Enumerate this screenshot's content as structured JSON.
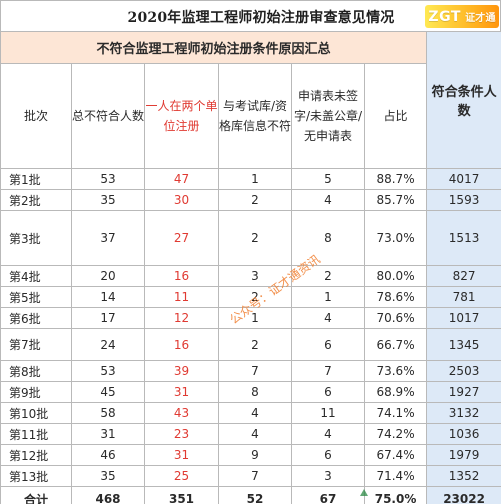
{
  "page": {
    "title": "2020年监理工程师初始注册审查意见情况"
  },
  "logo": {
    "text": "ZGT",
    "sub": "证才通",
    "accent_color": "#ffb51a"
  },
  "watermark": {
    "text": "公众号：证才通资讯",
    "color": "#f07c2c"
  },
  "table": {
    "group_header": "不符合监理工程师初始注册条件原因汇总",
    "qualified_header": "符合条件人数",
    "columns": {
      "batch": "批次",
      "total_noncompliant": "总不符合人数",
      "dual_units": "一人在两个单位注册",
      "exam_mismatch": "与考试库/资格库信息不符",
      "unsigned_forms": "申请表未签字/未盖公章/无申请表",
      "ratio": "占比"
    },
    "rows": [
      {
        "batch": "第1批",
        "total": "53",
        "dual": "47",
        "exam": "1",
        "forms": "5",
        "ratio": "88.7%",
        "qualified": "4017"
      },
      {
        "batch": "第2批",
        "total": "35",
        "dual": "30",
        "exam": "2",
        "forms": "4",
        "ratio": "85.7%",
        "qualified": "1593"
      },
      {
        "batch": "第3批",
        "total": "37",
        "dual": "27",
        "exam": "2",
        "forms": "8",
        "ratio": "73.0%",
        "qualified": "1513"
      },
      {
        "batch": "第4批",
        "total": "20",
        "dual": "16",
        "exam": "3",
        "forms": "2",
        "ratio": "80.0%",
        "qualified": "827"
      },
      {
        "batch": "第5批",
        "total": "14",
        "dual": "11",
        "exam": "2",
        "forms": "1",
        "ratio": "78.6%",
        "qualified": "781"
      },
      {
        "batch": "第6批",
        "total": "17",
        "dual": "12",
        "exam": "1",
        "forms": "4",
        "ratio": "70.6%",
        "qualified": "1017"
      },
      {
        "batch": "第7批",
        "total": "24",
        "dual": "16",
        "exam": "2",
        "forms": "6",
        "ratio": "66.7%",
        "qualified": "1345"
      },
      {
        "batch": "第8批",
        "total": "53",
        "dual": "39",
        "exam": "7",
        "forms": "7",
        "ratio": "73.6%",
        "qualified": "2503"
      },
      {
        "batch": "第9批",
        "total": "45",
        "dual": "31",
        "exam": "8",
        "forms": "6",
        "ratio": "68.9%",
        "qualified": "1927"
      },
      {
        "batch": "第10批",
        "total": "58",
        "dual": "43",
        "exam": "4",
        "forms": "11",
        "ratio": "74.1%",
        "qualified": "3132"
      },
      {
        "batch": "第11批",
        "total": "31",
        "dual": "23",
        "exam": "4",
        "forms": "4",
        "ratio": "74.2%",
        "qualified": "1036"
      },
      {
        "batch": "第12批",
        "total": "46",
        "dual": "31",
        "exam": "9",
        "forms": "6",
        "ratio": "67.4%",
        "qualified": "1979"
      },
      {
        "batch": "第13批",
        "total": "35",
        "dual": "25",
        "exam": "7",
        "forms": "3",
        "ratio": "71.4%",
        "qualified": "1352"
      }
    ],
    "total": {
      "label": "合计",
      "total": "468",
      "dual": "351",
      "exam": "52",
      "forms": "67",
      "ratio": "75.0%",
      "qualified": "23022"
    }
  },
  "colors": {
    "group_header_bg": "#fde6d6",
    "qualified_bg": "#dde9f7",
    "red_text": "#e03a32",
    "grid": "#b9b9b9"
  }
}
